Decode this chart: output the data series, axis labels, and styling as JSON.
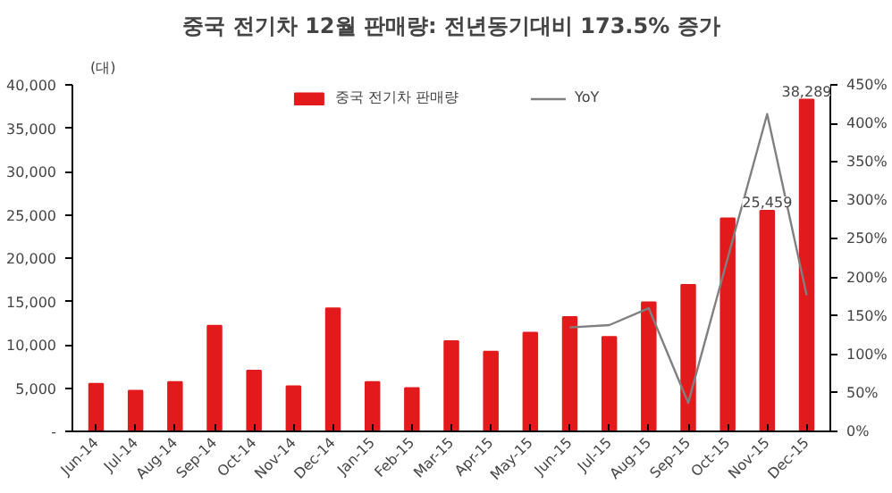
{
  "chart_data": {
    "type": "bar",
    "title": "중국 전기차 12월 판매량: 전년동기대비 173.5% 증가",
    "ylabel": "(대)",
    "categories": [
      "Jun-14",
      "Jul-14",
      "Aug-14",
      "Sep-14",
      "Oct-14",
      "Nov-14",
      "Dec-14",
      "Jan-15",
      "Feb-15",
      "Mar-15",
      "Apr-15",
      "May-15",
      "Jun-15",
      "Jul-15",
      "Aug-15",
      "Sep-15",
      "Oct-15",
      "Nov-15",
      "Dec-15"
    ],
    "series": [
      {
        "name": "중국 전기차 판매량",
        "color": "#e31a1c",
        "values": [
          5500,
          4700,
          5700,
          12200,
          7000,
          5200,
          14200,
          5700,
          5000,
          10400,
          9200,
          11400,
          13200,
          10900,
          14900,
          16900,
          24600,
          25459,
          38289
        ],
        "value_labels": [
          null,
          null,
          null,
          null,
          null,
          null,
          null,
          null,
          null,
          null,
          null,
          null,
          null,
          null,
          null,
          null,
          null,
          "25,459",
          "38,289"
        ]
      },
      {
        "name": "YoY",
        "type": "line",
        "axis": "y2",
        "color": "#808080",
        "values": [
          null,
          null,
          null,
          null,
          null,
          null,
          null,
          null,
          null,
          null,
          null,
          null,
          135,
          138,
          160,
          37,
          225,
          412,
          177
        ]
      }
    ],
    "ylim": [
      0,
      40000
    ],
    "yticks": [
      {
        "value": 0,
        "label": "-"
      },
      {
        "value": 5000,
        "label": "5,000"
      },
      {
        "value": 10000,
        "label": "10,000"
      },
      {
        "value": 15000,
        "label": "15,000"
      },
      {
        "value": 20000,
        "label": "20,000"
      },
      {
        "value": 25000,
        "label": "25,000"
      },
      {
        "value": 30000,
        "label": "30,000"
      },
      {
        "value": 35000,
        "label": "35,000"
      },
      {
        "value": 40000,
        "label": "40,000"
      }
    ],
    "y2lim": [
      0,
      450
    ],
    "y2ticks": [
      {
        "value": 0,
        "label": "0%"
      },
      {
        "value": 50,
        "label": "50%"
      },
      {
        "value": 100,
        "label": "100%"
      },
      {
        "value": 150,
        "label": "150%"
      },
      {
        "value": 200,
        "label": "200%"
      },
      {
        "value": 250,
        "label": "250%"
      },
      {
        "value": 300,
        "label": "300%"
      },
      {
        "value": 350,
        "label": "350%"
      },
      {
        "value": 400,
        "label": "400%"
      },
      {
        "value": 450,
        "label": "450%"
      }
    ],
    "legend": "top"
  }
}
